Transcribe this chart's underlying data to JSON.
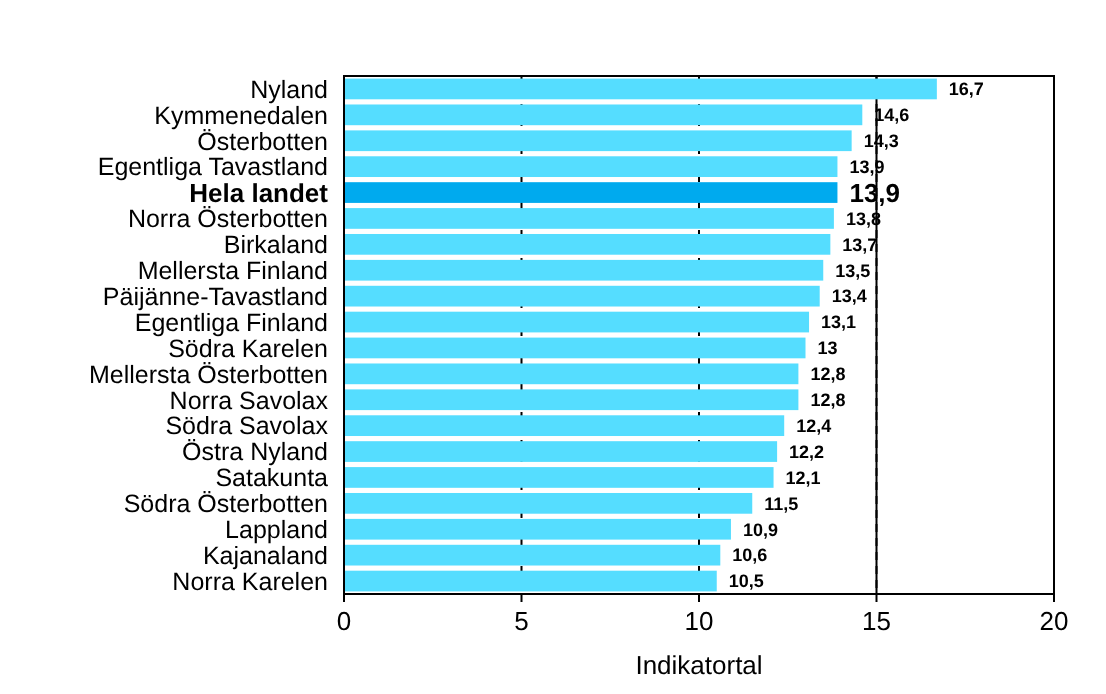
{
  "chart_data": {
    "type": "bar",
    "orientation": "horizontal",
    "xlabel": "Indikatortal",
    "categories": [
      "Nyland",
      "Kymmenedalen",
      "Österbotten",
      "Egentliga Tavastland",
      "Hela landet",
      "Norra Österbotten",
      "Birkaland",
      "Mellersta Finland",
      "Päijänne-Tavastland",
      "Egentliga Finland",
      "Södra Karelen",
      "Mellersta Österbotten",
      "Norra Savolax",
      "Södra Savolax",
      "Östra Nyland",
      "Satakunta",
      "Södra Österbotten",
      "Lappland",
      "Kajanaland",
      "Norra Karelen"
    ],
    "values": [
      16.7,
      14.6,
      14.3,
      13.9,
      13.9,
      13.8,
      13.7,
      13.5,
      13.4,
      13.1,
      13,
      12.8,
      12.8,
      12.4,
      12.2,
      12.1,
      11.5,
      10.9,
      10.6,
      10.5
    ],
    "value_labels": [
      "16,7",
      "14,6",
      "14,3",
      "13,9",
      "13,9",
      "13,8",
      "13,7",
      "13,5",
      "13,4",
      "13,1",
      "13",
      "12,8",
      "12,8",
      "12,4",
      "12,2",
      "12,1",
      "11,5",
      "10,9",
      "10,6",
      "10,5"
    ],
    "colors": [
      "#55ddff",
      "#55ddff",
      "#55ddff",
      "#55ddff",
      "#00aaee",
      "#55ddff",
      "#55ddff",
      "#55ddff",
      "#55ddff",
      "#55ddff",
      "#55ddff",
      "#55ddff",
      "#55ddff",
      "#55ddff",
      "#55ddff",
      "#55ddff",
      "#55ddff",
      "#55ddff",
      "#55ddff",
      "#55ddff"
    ],
    "xlim": [
      0,
      20
    ],
    "xticks": [
      0,
      5,
      10,
      15,
      20
    ],
    "grid": "x",
    "ref_lines": [
      {
        "axis": "x",
        "value": 15,
        "color": "#000000",
        "line_style": "solid"
      }
    ]
  }
}
